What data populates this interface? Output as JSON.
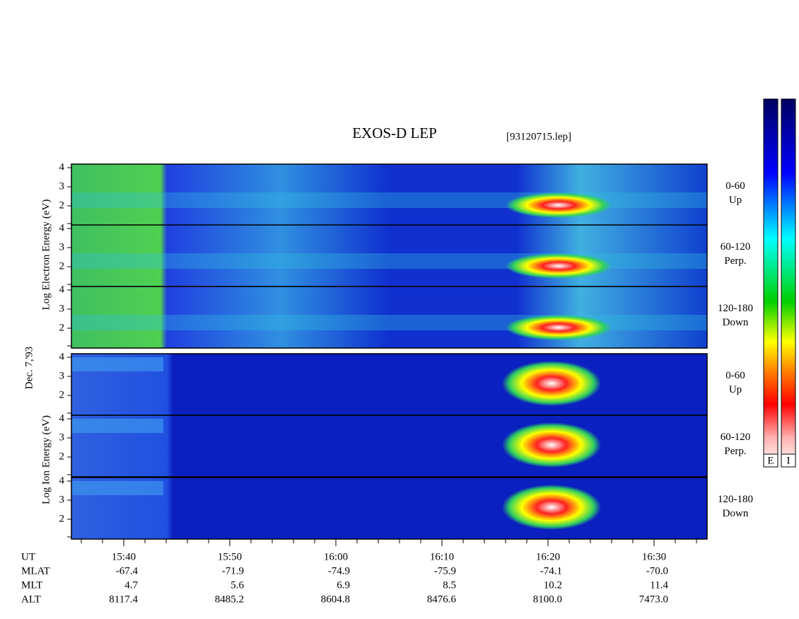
{
  "title": "EXOS-D LEP",
  "file": "[93120715.lep]",
  "left_labels": {
    "electron": "Log  Electron  Energy (eV)",
    "date": "Dec. 7,'93",
    "ion": "Log  Ion  Energy (eV)"
  },
  "panels": [
    {
      "angle": "0-60",
      "direction": "Up"
    },
    {
      "angle": "60-120",
      "direction": "Perp."
    },
    {
      "angle": "120-180",
      "direction": "Down"
    },
    {
      "angle": "0-60",
      "direction": "Up"
    },
    {
      "angle": "60-120",
      "direction": "Perp."
    },
    {
      "angle": "120-180",
      "direction": "Down"
    }
  ],
  "y_ticks": [
    "4",
    "3",
    "2"
  ],
  "colorbar_labels": [
    "E",
    "I"
  ],
  "rows": [
    {
      "label": "UT",
      "values": [
        "15:40",
        "15:50",
        "16:00",
        "16:10",
        "16:20",
        "16:30"
      ]
    },
    {
      "label": "MLAT",
      "values": [
        "-67.4",
        "-71.9",
        "-74.9",
        "-75.9",
        "-74.1",
        "-70.0"
      ]
    },
    {
      "label": "MLT",
      "values": [
        "4.7",
        "5.6",
        "6.9",
        "8.5",
        "10.2",
        "11.4"
      ]
    },
    {
      "label": "ALT",
      "values": [
        "8117.4",
        "8485.2",
        "8604.8",
        "8476.6",
        "8100.0",
        "7473.0"
      ]
    }
  ]
}
